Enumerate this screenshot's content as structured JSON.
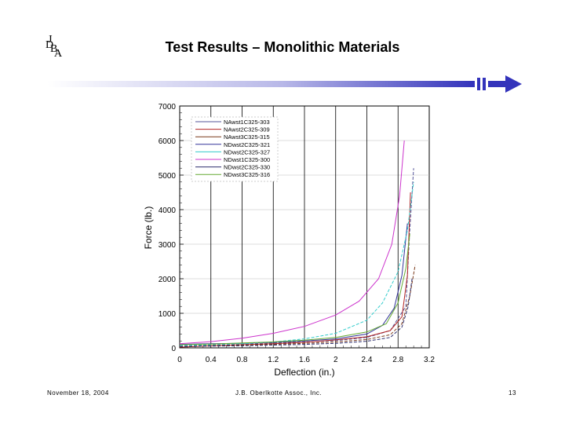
{
  "slide": {
    "logo_letters": [
      "J",
      "D",
      "B",
      "A"
    ],
    "title": "Test Results – Monolithic Materials",
    "footer_left": "November 18, 2004",
    "footer_center": "J.B. Oberlkotte Assoc., Inc.",
    "footer_right": "13",
    "banner_color": "#3333bb"
  },
  "chart_data": {
    "type": "line",
    "title": "",
    "xlabel": "Deflection (in.)",
    "ylabel": "Force (lb.)",
    "xlim": [
      0,
      3.2
    ],
    "ylim": [
      0,
      7000
    ],
    "xticks": [
      "0",
      "0.4",
      "0.8",
      "1.2",
      "1.6",
      "2",
      "2.4",
      "2.8",
      "3.2"
    ],
    "yticks": [
      "0",
      "1000",
      "2000",
      "3000",
      "4000",
      "5000",
      "6000",
      "7000"
    ],
    "grid": true,
    "legend_position": "top-right",
    "series": [
      {
        "name": "NAwst1C325-303",
        "color": "#555599",
        "x": [
          0,
          0.4,
          0.8,
          1.2,
          1.6,
          2.0,
          2.4,
          2.7,
          2.9,
          2.95,
          3.0
        ],
        "y": [
          60,
          80,
          110,
          140,
          170,
          210,
          300,
          500,
          1200,
          3400,
          5200
        ]
      },
      {
        "name": "NAwst2C325-309",
        "color": "#b22222",
        "x": [
          0,
          0.4,
          0.8,
          1.2,
          1.6,
          2.0,
          2.4,
          2.7,
          2.85,
          2.92,
          2.96
        ],
        "y": [
          20,
          60,
          90,
          120,
          160,
          230,
          320,
          500,
          900,
          2100,
          4500
        ]
      },
      {
        "name": "NAwst3C325-315",
        "color": "#7a3a1a",
        "x": [
          0,
          0.4,
          0.8,
          1.2,
          1.6,
          2.0,
          2.4,
          2.7,
          2.85,
          2.95,
          3.02
        ],
        "y": [
          50,
          60,
          80,
          100,
          130,
          170,
          240,
          380,
          700,
          1500,
          2400
        ]
      },
      {
        "name": "NDwst2C325-321",
        "color": "#333399",
        "x": [
          0,
          0.4,
          0.8,
          1.2,
          1.6,
          2.0,
          2.4,
          2.6,
          2.75,
          2.85,
          2.92
        ],
        "y": [
          100,
          120,
          130,
          160,
          200,
          260,
          400,
          650,
          1150,
          2100,
          3600
        ]
      },
      {
        "name": "NDwst2C325-327",
        "color": "#33cccc",
        "x": [
          0,
          0.4,
          0.8,
          1.2,
          1.6,
          2.0,
          2.4,
          2.6,
          2.8,
          2.92,
          3.0
        ],
        "y": [
          60,
          90,
          120,
          170,
          260,
          420,
          800,
          1300,
          2200,
          3400,
          4800
        ]
      },
      {
        "name": "NDwst1C325-300",
        "color": "#cc33cc",
        "x": [
          0,
          0.4,
          0.8,
          1.2,
          1.6,
          2.0,
          2.3,
          2.55,
          2.72,
          2.82,
          2.88
        ],
        "y": [
          120,
          180,
          280,
          420,
          620,
          950,
          1350,
          2000,
          3000,
          4400,
          6000
        ]
      },
      {
        "name": "NDwst2C325-330",
        "color": "#2e2e6e",
        "x": [
          0,
          0.4,
          0.8,
          1.2,
          1.6,
          2.0,
          2.4,
          2.7,
          2.85,
          2.93,
          2.98
        ],
        "y": [
          40,
          50,
          60,
          80,
          100,
          130,
          190,
          300,
          600,
          1200,
          2000
        ]
      },
      {
        "name": "NDwst3C325-316",
        "color": "#66aa33",
        "x": [
          0,
          0.4,
          0.8,
          1.2,
          1.6,
          2.0,
          2.4,
          2.65,
          2.8,
          2.9,
          2.95
        ],
        "y": [
          90,
          110,
          140,
          170,
          220,
          300,
          460,
          700,
          1300,
          2300,
          3300
        ]
      }
    ]
  }
}
